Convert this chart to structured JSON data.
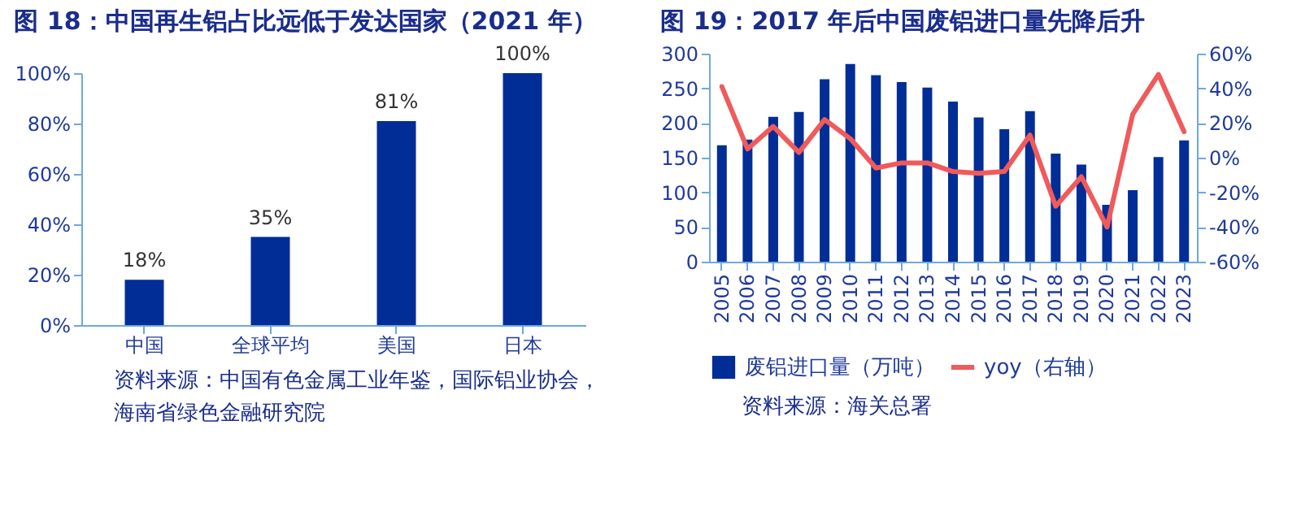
{
  "chart_data": [
    {
      "type": "bar",
      "title": "图 18：中国再生铝占比远低于发达国家（2021 年）",
      "categories": [
        "中国",
        "全球平均",
        "美国",
        "日本"
      ],
      "values": [
        18,
        35,
        81,
        100
      ],
      "value_labels": [
        "18%",
        "35%",
        "81%",
        "100%"
      ],
      "color": "#002d96",
      "ylim": [
        0,
        100
      ],
      "yticks": [
        {
          "value": 0,
          "label": "0%"
        },
        {
          "value": 20,
          "label": "20%"
        },
        {
          "value": 40,
          "label": "40%"
        },
        {
          "value": 60,
          "label": "60%"
        },
        {
          "value": 80,
          "label": "80%"
        },
        {
          "value": 100,
          "label": "100%"
        }
      ],
      "grid": false,
      "annotations": [
        "资料来源：中国有色金属工业年鉴，国际铝业协会，海南省绿色金融研究院"
      ]
    },
    {
      "type": "bar",
      "title": "图 19：2017 年后中国废铝进口量先降后升",
      "categories": [
        "2005",
        "2006",
        "2007",
        "2008",
        "2009",
        "2010",
        "2011",
        "2012",
        "2013",
        "2014",
        "2015",
        "2016",
        "2017",
        "2018",
        "2019",
        "2020",
        "2021",
        "2022",
        "2023"
      ],
      "series": [
        {
          "name": "废铝进口量（万吨）",
          "type": "bar",
          "color": "#002d96",
          "values": [
            168,
            176,
            209,
            216,
            263,
            285,
            269,
            259,
            251,
            231,
            208,
            191,
            217,
            156,
            140,
            82,
            103,
            151,
            175
          ]
        },
        {
          "name": "yoy（右轴）",
          "type": "line",
          "axis": "y2",
          "color": "#f05a5a",
          "values": [
            41,
            5,
            18,
            3,
            22,
            11,
            -6,
            -3,
            -3,
            -8,
            -9,
            -8,
            13,
            -28,
            -11,
            -40,
            25,
            48,
            15
          ]
        }
      ],
      "ylim": [
        0,
        300
      ],
      "yticks": [
        0,
        50,
        100,
        150,
        200,
        250,
        300
      ],
      "y2lim": [
        -60,
        60
      ],
      "y2ticks": [
        {
          "value": -60,
          "label": "-60%"
        },
        {
          "value": -40,
          "label": "-40%"
        },
        {
          "value": -20,
          "label": "-20%"
        },
        {
          "value": 0,
          "label": "0%"
        },
        {
          "value": 20,
          "label": "20%"
        },
        {
          "value": 40,
          "label": "40%"
        },
        {
          "value": 60,
          "label": "60%"
        }
      ],
      "grid": false,
      "legend": "bottom",
      "line_style": "solid",
      "marker": "none",
      "annotations": [
        "资料来源：海关总署"
      ]
    }
  ]
}
